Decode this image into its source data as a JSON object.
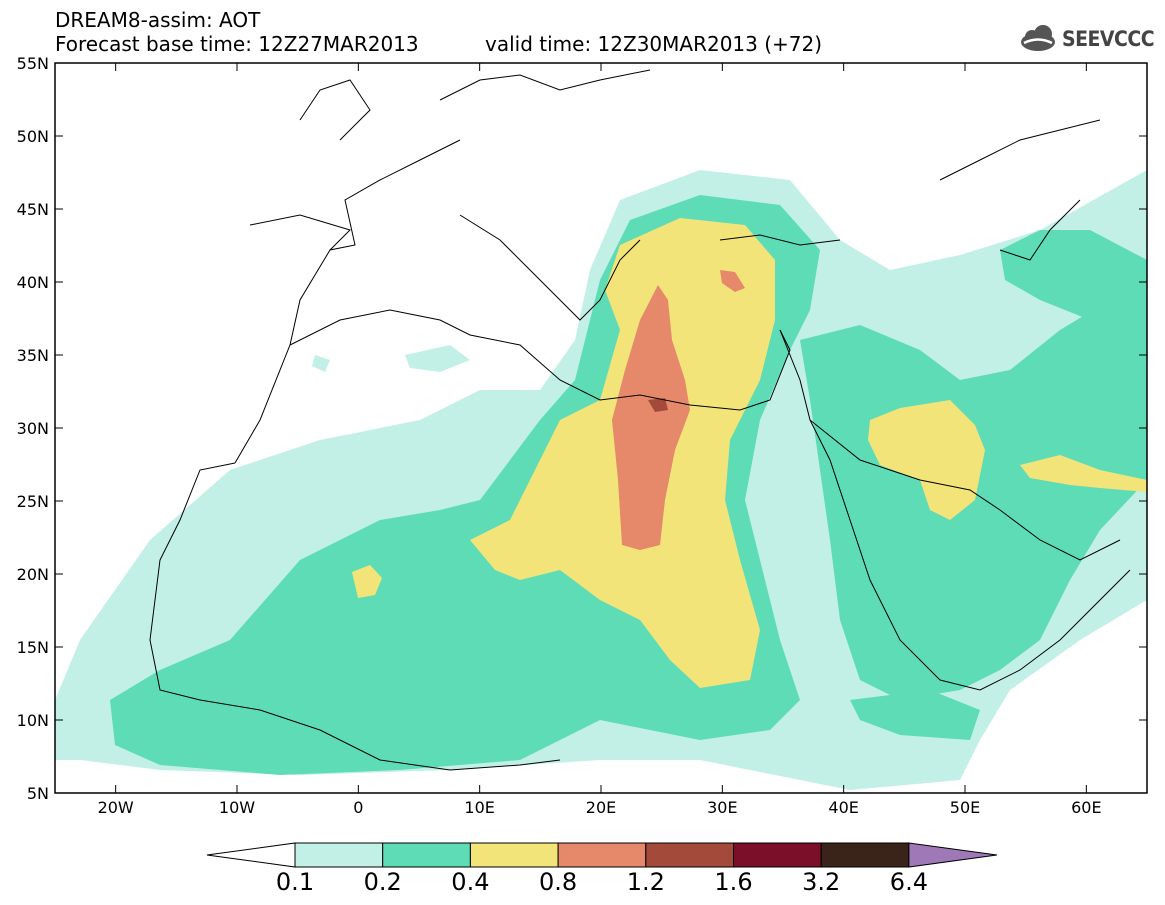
{
  "header": {
    "title_line1": "DREAM8-assim: AOT",
    "title_line2": "Forecast base time: 12Z27MAR2013",
    "valid_time": "valid time: 12Z30MAR2013 (+72)",
    "logo_text": "SEEVCCC",
    "logo_icon": "cloud-icon"
  },
  "map": {
    "region": "North Africa, Mediterranean, Middle East",
    "lon_range": [
      -25,
      65
    ],
    "lat_range": [
      5,
      55
    ],
    "lon_ticks": [
      "20W",
      "10W",
      "0",
      "10E",
      "20E",
      "30E",
      "40E",
      "50E",
      "60E"
    ],
    "lat_ticks": [
      "55N",
      "50N",
      "45N",
      "40N",
      "35N",
      "30N",
      "25N",
      "20N",
      "15N",
      "10N",
      "5N"
    ]
  },
  "colorbar": {
    "labels": [
      "0.1",
      "0.2",
      "0.4",
      "0.8",
      "1.2",
      "1.6",
      "3.2",
      "6.4"
    ],
    "colors": [
      "#c2f0e6",
      "#5ddcb6",
      "#f3e47a",
      "#e5896a",
      "#a34a3b",
      "#7b0e28",
      "#3a2419",
      "#9e78b7"
    ]
  }
}
